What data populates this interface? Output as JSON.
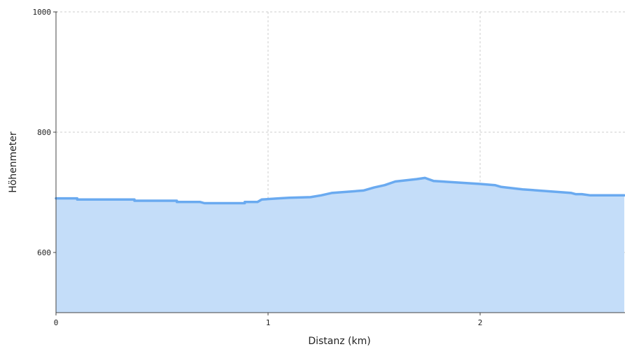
{
  "chart_data": {
    "type": "area",
    "xlabel": "Distanz (km)",
    "ylabel": "Höhenmeter",
    "xlim": [
      0,
      2.68
    ],
    "ylim": [
      500,
      1000
    ],
    "grid": true,
    "x_ticks": [
      {
        "value": 0,
        "label": "0"
      },
      {
        "value": 1,
        "label": "1"
      },
      {
        "value": 2,
        "label": "2"
      }
    ],
    "y_ticks": [
      {
        "value": 600,
        "label": "600"
      },
      {
        "value": 800,
        "label": "800"
      },
      {
        "value": 1000,
        "label": "1000"
      }
    ],
    "series": [
      {
        "x": [
          0,
          0.1,
          0.1,
          0.37,
          0.37,
          0.57,
          0.57,
          0.68,
          0.7,
          0.89,
          0.89,
          0.95,
          0.97,
          1.05,
          1.1,
          1.2,
          1.25,
          1.3,
          1.45,
          1.5,
          1.55,
          1.6,
          1.7,
          1.74,
          1.78,
          2.0,
          2.07,
          2.1,
          2.2,
          2.43,
          2.45,
          2.48,
          2.52,
          2.68
        ],
        "values": [
          690,
          690,
          688,
          688,
          686,
          686,
          684,
          684,
          682,
          682,
          684,
          684,
          688,
          690,
          691,
          692,
          695,
          699,
          703,
          708,
          712,
          718,
          722,
          724,
          719,
          714,
          712,
          709,
          705,
          699,
          697,
          697,
          695,
          695
        ]
      }
    ],
    "colors": {
      "line": "#6aaaf0",
      "fill": "#c4ddf9",
      "grid": "#cccccc",
      "axis": "#444444"
    }
  }
}
